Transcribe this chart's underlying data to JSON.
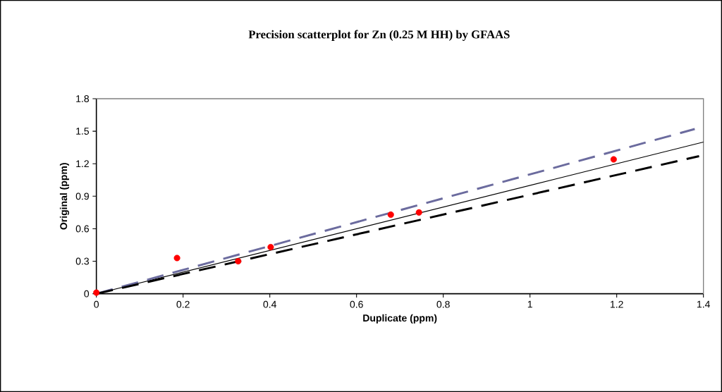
{
  "chart_data": {
    "type": "scatter",
    "title": "Precision scatterplot for Zn (0.25 M HH) by GFAAS",
    "xlabel": "Duplicate (ppm)",
    "ylabel": "Original (ppm)",
    "xlim": [
      0,
      1.4
    ],
    "ylim": [
      0,
      1.8
    ],
    "xticks": [
      0,
      0.2,
      0.4,
      0.6,
      0.8,
      1,
      1.2,
      1.4
    ],
    "yticks": [
      0,
      0.3,
      0.6,
      0.9,
      1.2,
      1.5,
      1.8
    ],
    "series": [
      {
        "color": "#ff0000",
        "marker": "circle",
        "x": [
          0,
          0.186,
          0.327,
          0.402,
          0.679,
          0.744,
          1.193
        ],
        "values": [
          0.01,
          0.33,
          0.3,
          0.43,
          0.73,
          0.75,
          1.24
        ]
      },
      {
        "type": "line",
        "color": "#000000",
        "line_style": "solid",
        "marker": "none",
        "x": [
          0,
          1.4
        ],
        "values": [
          0,
          1.4
        ]
      },
      {
        "type": "line",
        "color": "#6b6b9e",
        "line_style": "dashed",
        "marker": "none",
        "x": [
          0,
          1.38
        ],
        "values": [
          0,
          1.52
        ]
      },
      {
        "type": "line",
        "color": "#000000",
        "line_style": "dashed",
        "marker": "none",
        "x": [
          0,
          1.39
        ],
        "values": [
          0,
          1.27
        ]
      }
    ]
  }
}
